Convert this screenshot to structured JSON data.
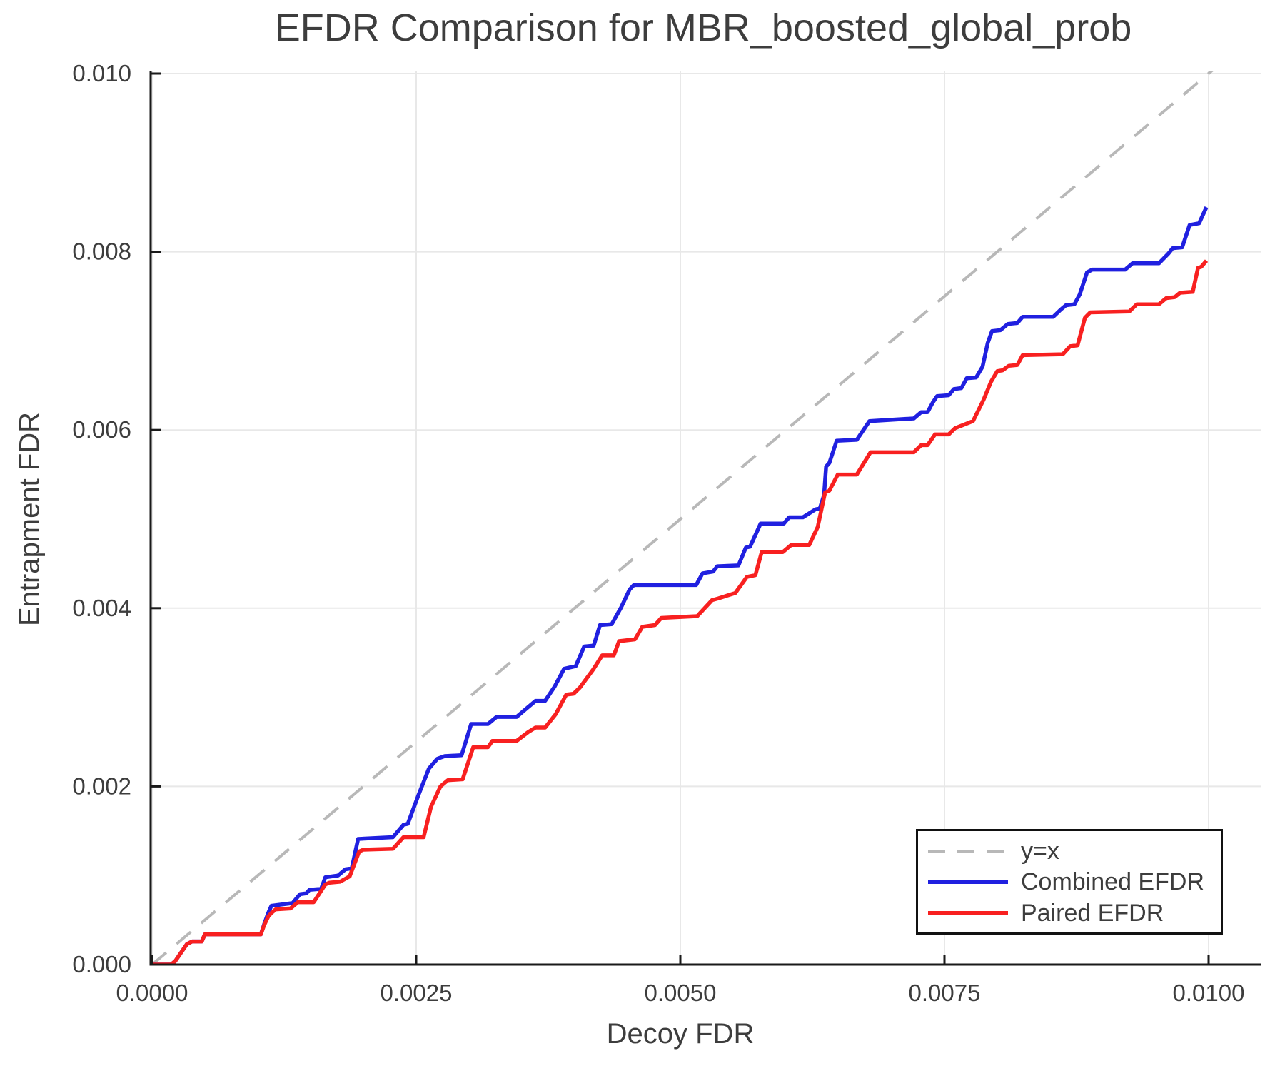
{
  "title": "EFDR Comparison for MBR_boosted_global_prob",
  "colors": {
    "background": "#ffffff",
    "grid": "#e8e8e8",
    "spine": "#1a1a1a",
    "text": "#3d3d3d",
    "identity_line": "#b8b8b8",
    "combined": "#2020e0",
    "paired": "#f82020"
  },
  "chart_data": {
    "type": "line",
    "title": "EFDR Comparison for MBR_boosted_global_prob",
    "xlabel": "Decoy FDR",
    "ylabel": "Entrapment FDR",
    "xlim": [
      0,
      0.0105
    ],
    "ylim": [
      0,
      0.01
    ],
    "grid": true,
    "legend_position": "lower right",
    "x_ticks": [
      {
        "v": 0.0,
        "label": "0.0000"
      },
      {
        "v": 0.0025,
        "label": "0.0025"
      },
      {
        "v": 0.005,
        "label": "0.0050"
      },
      {
        "v": 0.0075,
        "label": "0.0075"
      },
      {
        "v": 0.01,
        "label": "0.0100"
      }
    ],
    "y_ticks": [
      {
        "v": 0.0,
        "label": "0.000"
      },
      {
        "v": 0.002,
        "label": "0.002"
      },
      {
        "v": 0.004,
        "label": "0.004"
      },
      {
        "v": 0.006,
        "label": "0.006"
      },
      {
        "v": 0.008,
        "label": "0.008"
      },
      {
        "v": 0.01,
        "label": "0.010"
      }
    ],
    "series": [
      {
        "name": "y=x",
        "color": "#b8b8b8",
        "style": "dashed",
        "width": 4,
        "points": [
          [
            0,
            0
          ],
          [
            0.0102,
            0.0102
          ]
        ]
      },
      {
        "name": "Combined EFDR",
        "color": "#2020e0",
        "style": "solid",
        "width": 5.5,
        "points": [
          [
            0,
            0
          ],
          [
            0.00018,
            0
          ],
          [
            0.00022,
            4e-05
          ],
          [
            0.00026,
            0.00011
          ],
          [
            0.00033,
            0.00023
          ],
          [
            0.00038,
            0.00026
          ],
          [
            0.00047,
            0.00026
          ],
          [
            0.0005,
            0.00034
          ],
          [
            0.00103,
            0.00034
          ],
          [
            0.00106,
            0.00045
          ],
          [
            0.0011,
            0.00058
          ],
          [
            0.00113,
            0.00066
          ],
          [
            0.00133,
            0.00069
          ],
          [
            0.0014,
            0.00079
          ],
          [
            0.00146,
            0.0008
          ],
          [
            0.00149,
            0.00084
          ],
          [
            0.0016,
            0.00085
          ],
          [
            0.00164,
            0.00098
          ],
          [
            0.00176,
            0.001
          ],
          [
            0.00183,
            0.00107
          ],
          [
            0.00189,
            0.00108
          ],
          [
            0.00195,
            0.00141
          ],
          [
            0.00228,
            0.00143
          ],
          [
            0.00238,
            0.00157
          ],
          [
            0.00242,
            0.00158
          ],
          [
            0.00252,
            0.0019
          ],
          [
            0.00262,
            0.0022
          ],
          [
            0.0027,
            0.00231
          ],
          [
            0.00277,
            0.00234
          ],
          [
            0.00293,
            0.00235
          ],
          [
            0.00302,
            0.0027
          ],
          [
            0.00318,
            0.0027
          ],
          [
            0.00326,
            0.00278
          ],
          [
            0.00345,
            0.00278
          ],
          [
            0.00354,
            0.00287
          ],
          [
            0.00363,
            0.00296
          ],
          [
            0.00372,
            0.00296
          ],
          [
            0.00381,
            0.00312
          ],
          [
            0.0039,
            0.00332
          ],
          [
            0.00401,
            0.00335
          ],
          [
            0.00409,
            0.00357
          ],
          [
            0.00418,
            0.00358
          ],
          [
            0.00424,
            0.00381
          ],
          [
            0.00435,
            0.00382
          ],
          [
            0.00444,
            0.00401
          ],
          [
            0.00452,
            0.00421
          ],
          [
            0.00456,
            0.00426
          ],
          [
            0.00515,
            0.00426
          ],
          [
            0.00521,
            0.00439
          ],
          [
            0.00531,
            0.00441
          ],
          [
            0.00535,
            0.00447
          ],
          [
            0.00555,
            0.00448
          ],
          [
            0.00562,
            0.00468
          ],
          [
            0.00566,
            0.00469
          ],
          [
            0.00576,
            0.00495
          ],
          [
            0.00598,
            0.00495
          ],
          [
            0.00603,
            0.00502
          ],
          [
            0.00616,
            0.00502
          ],
          [
            0.00628,
            0.00511
          ],
          [
            0.00632,
            0.00512
          ],
          [
            0.00636,
            0.00527
          ],
          [
            0.00638,
            0.00559
          ],
          [
            0.00641,
            0.00563
          ],
          [
            0.00648,
            0.00588
          ],
          [
            0.00667,
            0.00589
          ],
          [
            0.00679,
            0.0061
          ],
          [
            0.00721,
            0.00613
          ],
          [
            0.00728,
            0.0062
          ],
          [
            0.00734,
            0.0062
          ],
          [
            0.00739,
            0.00631
          ],
          [
            0.00743,
            0.00638
          ],
          [
            0.00754,
            0.00639
          ],
          [
            0.00759,
            0.00646
          ],
          [
            0.00766,
            0.00647
          ],
          [
            0.00771,
            0.00658
          ],
          [
            0.0078,
            0.00659
          ],
          [
            0.00786,
            0.00671
          ],
          [
            0.00791,
            0.00698
          ],
          [
            0.00795,
            0.00711
          ],
          [
            0.00803,
            0.00712
          ],
          [
            0.0081,
            0.00719
          ],
          [
            0.00819,
            0.0072
          ],
          [
            0.00824,
            0.00727
          ],
          [
            0.00853,
            0.00727
          ],
          [
            0.0086,
            0.00735
          ],
          [
            0.00865,
            0.0074
          ],
          [
            0.00873,
            0.00741
          ],
          [
            0.00878,
            0.00752
          ],
          [
            0.00885,
            0.00777
          ],
          [
            0.0089,
            0.0078
          ],
          [
            0.00921,
            0.0078
          ],
          [
            0.00928,
            0.00787
          ],
          [
            0.00953,
            0.00787
          ],
          [
            0.00962,
            0.00798
          ],
          [
            0.00966,
            0.00804
          ],
          [
            0.00975,
            0.00805
          ],
          [
            0.00982,
            0.0083
          ],
          [
            0.00991,
            0.00832
          ],
          [
            0.00998,
            0.0085
          ]
        ]
      },
      {
        "name": "Paired EFDR",
        "color": "#f82020",
        "style": "solid",
        "width": 5.5,
        "points": [
          [
            0,
            0
          ],
          [
            0.00018,
            0
          ],
          [
            0.00022,
            4e-05
          ],
          [
            0.00026,
            0.00011
          ],
          [
            0.00033,
            0.00023
          ],
          [
            0.00038,
            0.00026
          ],
          [
            0.00047,
            0.00026
          ],
          [
            0.0005,
            0.00034
          ],
          [
            0.00103,
            0.00034
          ],
          [
            0.00106,
            0.00044
          ],
          [
            0.0011,
            0.00054
          ],
          [
            0.00113,
            0.00058
          ],
          [
            0.00117,
            0.00062
          ],
          [
            0.00131,
            0.00063
          ],
          [
            0.00138,
            0.0007
          ],
          [
            0.00153,
            0.0007
          ],
          [
            0.00164,
            0.0009
          ],
          [
            0.00168,
            0.00092
          ],
          [
            0.00178,
            0.00093
          ],
          [
            0.00187,
            0.00099
          ],
          [
            0.00196,
            0.00127
          ],
          [
            0.002,
            0.00129
          ],
          [
            0.00228,
            0.0013
          ],
          [
            0.00238,
            0.00143
          ],
          [
            0.00257,
            0.00143
          ],
          [
            0.00264,
            0.00177
          ],
          [
            0.00273,
            0.002
          ],
          [
            0.0028,
            0.00207
          ],
          [
            0.00294,
            0.00208
          ],
          [
            0.00304,
            0.00244
          ],
          [
            0.00318,
            0.00244
          ],
          [
            0.00322,
            0.00251
          ],
          [
            0.00345,
            0.00251
          ],
          [
            0.00356,
            0.00261
          ],
          [
            0.00363,
            0.00266
          ],
          [
            0.00372,
            0.00266
          ],
          [
            0.00382,
            0.00281
          ],
          [
            0.00392,
            0.00303
          ],
          [
            0.00399,
            0.00304
          ],
          [
            0.00405,
            0.00311
          ],
          [
            0.00418,
            0.00332
          ],
          [
            0.00426,
            0.00347
          ],
          [
            0.00437,
            0.00347
          ],
          [
            0.00442,
            0.00363
          ],
          [
            0.00457,
            0.00365
          ],
          [
            0.00464,
            0.00379
          ],
          [
            0.00476,
            0.00381
          ],
          [
            0.00482,
            0.00389
          ],
          [
            0.00516,
            0.00391
          ],
          [
            0.0053,
            0.00409
          ],
          [
            0.00536,
            0.00411
          ],
          [
            0.00552,
            0.00417
          ],
          [
            0.00563,
            0.00435
          ],
          [
            0.00571,
            0.00437
          ],
          [
            0.00577,
            0.00463
          ],
          [
            0.00597,
            0.00463
          ],
          [
            0.00605,
            0.00471
          ],
          [
            0.00622,
            0.00471
          ],
          [
            0.0063,
            0.00491
          ],
          [
            0.00637,
            0.0053
          ],
          [
            0.00641,
            0.00532
          ],
          [
            0.00649,
            0.0055
          ],
          [
            0.00667,
            0.0055
          ],
          [
            0.0068,
            0.00575
          ],
          [
            0.00721,
            0.00575
          ],
          [
            0.00728,
            0.00583
          ],
          [
            0.00734,
            0.00583
          ],
          [
            0.00741,
            0.00595
          ],
          [
            0.00754,
            0.00595
          ],
          [
            0.0076,
            0.00602
          ],
          [
            0.00777,
            0.0061
          ],
          [
            0.00787,
            0.00634
          ],
          [
            0.00794,
            0.00654
          ],
          [
            0.008,
            0.00666
          ],
          [
            0.00805,
            0.00667
          ],
          [
            0.00811,
            0.00672
          ],
          [
            0.00819,
            0.00673
          ],
          [
            0.00824,
            0.00684
          ],
          [
            0.00862,
            0.00685
          ],
          [
            0.00869,
            0.00694
          ],
          [
            0.00876,
            0.00695
          ],
          [
            0.00883,
            0.00726
          ],
          [
            0.00888,
            0.00732
          ],
          [
            0.00925,
            0.00733
          ],
          [
            0.00932,
            0.00741
          ],
          [
            0.00953,
            0.00741
          ],
          [
            0.0096,
            0.00748
          ],
          [
            0.00968,
            0.00749
          ],
          [
            0.00973,
            0.00754
          ],
          [
            0.00985,
            0.00755
          ],
          [
            0.0099,
            0.00782
          ],
          [
            0.00993,
            0.00783
          ],
          [
            0.00998,
            0.0079
          ]
        ]
      }
    ]
  }
}
